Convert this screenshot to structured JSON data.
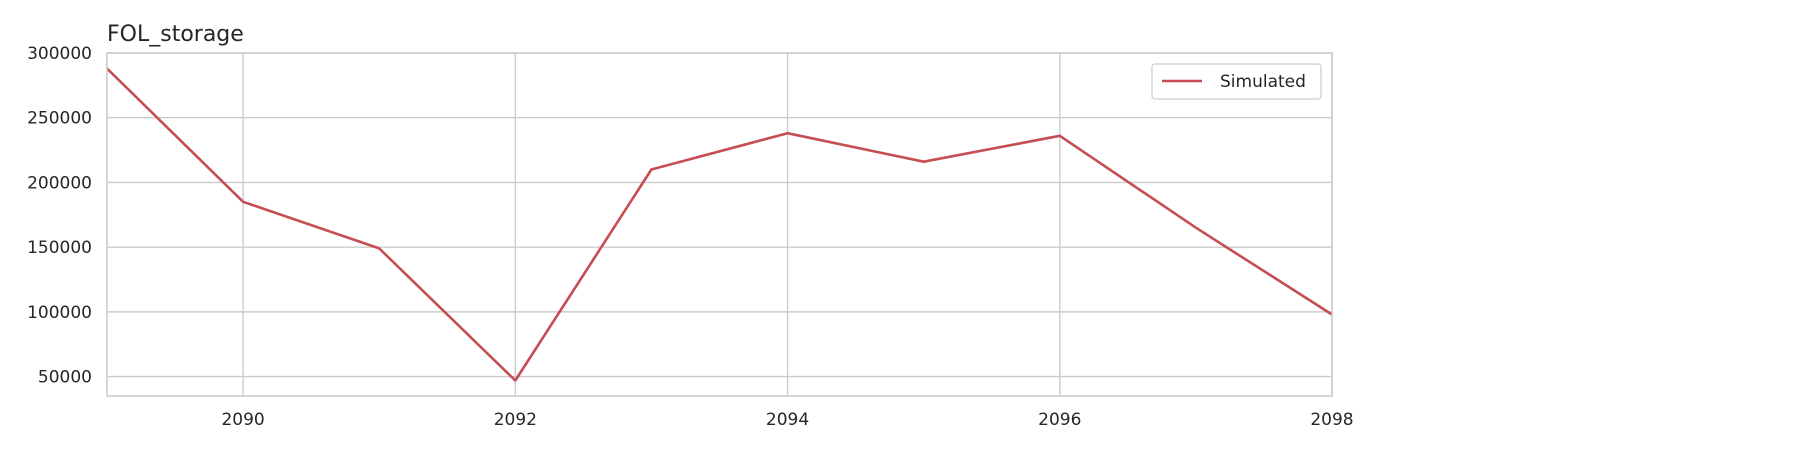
{
  "chart_data": {
    "type": "line",
    "title": "FOL_storage",
    "xlabel": "",
    "ylabel": "",
    "xlim": [
      2089,
      2098
    ],
    "ylim": [
      35000,
      300000
    ],
    "x_ticks": [
      2090,
      2092,
      2094,
      2096,
      2098
    ],
    "x_tick_labels": [
      "2090",
      "2092",
      "2094",
      "2096",
      "2098"
    ],
    "y_ticks": [
      50000,
      100000,
      150000,
      200000,
      250000,
      300000
    ],
    "y_tick_labels": [
      "50000",
      "100000",
      "150000",
      "200000",
      "250000",
      "300000"
    ],
    "grid": true,
    "legend_position": "top-right",
    "series": [
      {
        "name": "Simulated",
        "color": "#c44e52",
        "x": [
          2089,
          2090,
          2091,
          2092,
          2093,
          2094,
          2095,
          2096,
          2097,
          2098
        ],
        "y": [
          288000,
          185000,
          149000,
          47000,
          210000,
          238000,
          216000,
          236000,
          165000,
          98000
        ]
      }
    ]
  }
}
